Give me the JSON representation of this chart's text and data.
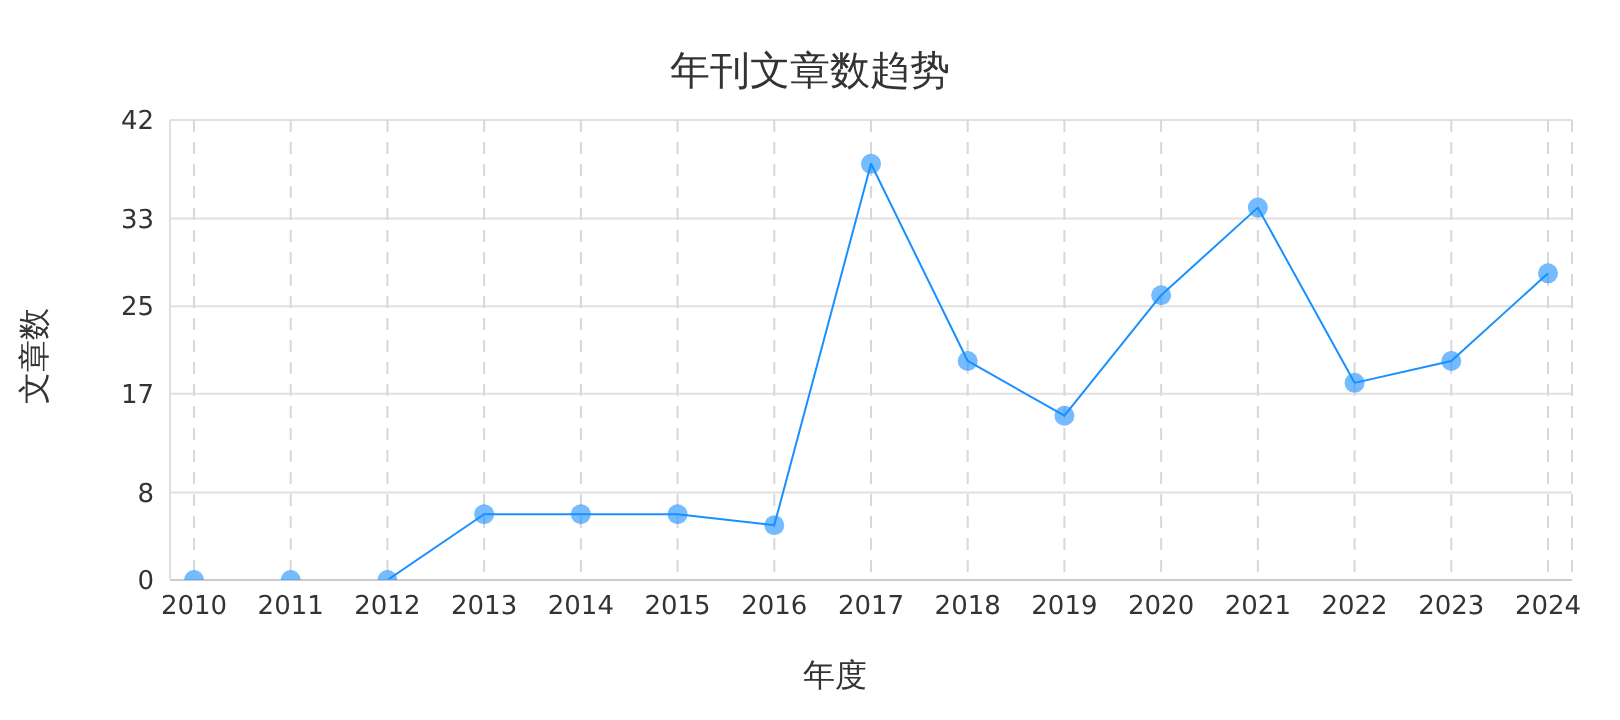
{
  "chart_data": {
    "type": "line",
    "title": "年刊文章数趋势",
    "xlabel": "年度",
    "ylabel": "文章数",
    "categories": [
      "2010",
      "2011",
      "2012",
      "2013",
      "2014",
      "2015",
      "2016",
      "2017",
      "2018",
      "2019",
      "2020",
      "2021",
      "2022",
      "2023",
      "2024"
    ],
    "series": [
      {
        "color": "#1890ff",
        "values": [
          0,
          0,
          0,
          6,
          6,
          6,
          5,
          38,
          20,
          15,
          26,
          34,
          18,
          20,
          28
        ]
      }
    ],
    "ylim": [
      0,
      42
    ],
    "yticks": [
      0,
      8,
      17,
      25,
      33,
      42
    ],
    "grid": true,
    "marker": "circle",
    "line_style": "solid"
  }
}
